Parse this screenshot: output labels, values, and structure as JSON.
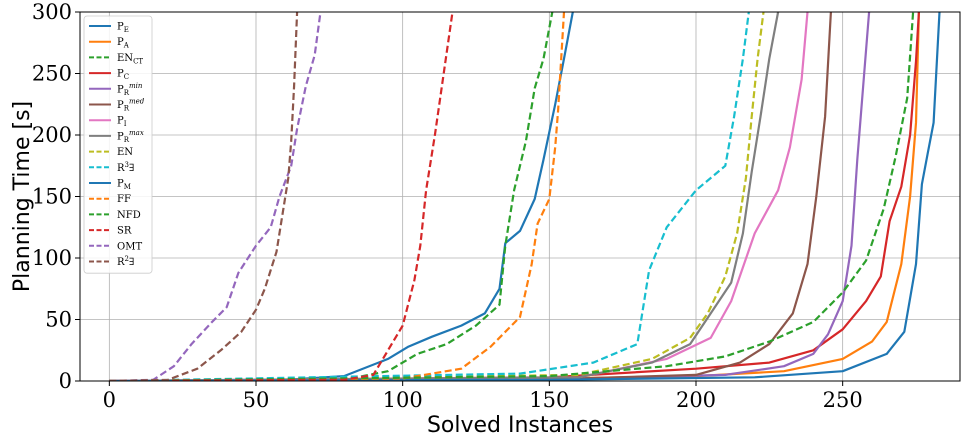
{
  "chart_data": {
    "type": "line",
    "xlabel": "Solved Instances",
    "ylabel": "Planning Time [s]",
    "xlim": [
      -10,
      290
    ],
    "ylim": [
      0,
      300
    ],
    "xticks": [
      0,
      50,
      100,
      150,
      200,
      250
    ],
    "yticks": [
      0,
      50,
      100,
      150,
      200,
      250,
      300
    ],
    "grid": true,
    "legend_position": "top-left",
    "series": [
      {
        "name": "P_E",
        "label_main": "P",
        "label_sub": "E",
        "label_sup": "",
        "color": "#1f77b4",
        "dash": "solid",
        "points": [
          [
            0,
            0
          ],
          [
            60,
            1
          ],
          [
            80,
            4
          ],
          [
            95,
            18
          ],
          [
            102,
            28
          ],
          [
            110,
            36
          ],
          [
            120,
            45
          ],
          [
            128,
            55
          ],
          [
            133,
            75
          ],
          [
            135,
            112
          ],
          [
            140,
            122
          ],
          [
            145,
            148
          ],
          [
            148,
            180
          ],
          [
            152,
            225
          ],
          [
            155,
            262
          ],
          [
            158,
            300
          ]
        ]
      },
      {
        "name": "P_A",
        "label_main": "P",
        "label_sub": "A",
        "label_sup": "",
        "color": "#ff7f0e",
        "dash": "solid",
        "points": [
          [
            0,
            0
          ],
          [
            150,
            2
          ],
          [
            200,
            4
          ],
          [
            230,
            8
          ],
          [
            250,
            18
          ],
          [
            260,
            32
          ],
          [
            265,
            48
          ],
          [
            270,
            95
          ],
          [
            273,
            150
          ],
          [
            275,
            210
          ],
          [
            276,
            300
          ]
        ]
      },
      {
        "name": "EN_CT",
        "label_main": "EN",
        "label_sub": "CT",
        "label_sup": "",
        "color": "#2ca02c",
        "dash": "dashed",
        "points": [
          [
            0,
            0
          ],
          [
            80,
            1
          ],
          [
            95,
            8
          ],
          [
            105,
            22
          ],
          [
            115,
            30
          ],
          [
            125,
            45
          ],
          [
            133,
            62
          ],
          [
            135,
            110
          ],
          [
            138,
            155
          ],
          [
            142,
            195
          ],
          [
            145,
            238
          ],
          [
            148,
            262
          ],
          [
            151,
            300
          ]
        ]
      },
      {
        "name": "P_C",
        "label_main": "P",
        "label_sub": "C",
        "label_sup": "",
        "color": "#d62728",
        "dash": "solid",
        "points": [
          [
            0,
            0
          ],
          [
            150,
            3
          ],
          [
            200,
            10
          ],
          [
            225,
            15
          ],
          [
            240,
            25
          ],
          [
            250,
            42
          ],
          [
            258,
            65
          ],
          [
            263,
            85
          ],
          [
            266,
            130
          ],
          [
            270,
            158
          ],
          [
            273,
            200
          ],
          [
            275,
            260
          ],
          [
            276,
            300
          ]
        ]
      },
      {
        "name": "P_R^min",
        "label_main": "P",
        "label_sub": "R",
        "label_sup": "min",
        "color": "#9467bd",
        "dash": "solid",
        "points": [
          [
            0,
            0
          ],
          [
            160,
            2
          ],
          [
            210,
            5
          ],
          [
            230,
            12
          ],
          [
            240,
            22
          ],
          [
            245,
            38
          ],
          [
            250,
            65
          ],
          [
            253,
            110
          ],
          [
            255,
            180
          ],
          [
            257,
            240
          ],
          [
            259,
            300
          ]
        ]
      },
      {
        "name": "P_R^med",
        "label_main": "P",
        "label_sub": "R",
        "label_sup": "med",
        "color": "#8c564b",
        "dash": "solid",
        "points": [
          [
            0,
            0
          ],
          [
            160,
            2
          ],
          [
            200,
            5
          ],
          [
            215,
            15
          ],
          [
            225,
            30
          ],
          [
            233,
            55
          ],
          [
            238,
            95
          ],
          [
            241,
            150
          ],
          [
            244,
            215
          ],
          [
            246,
            300
          ]
        ]
      },
      {
        "name": "P_I",
        "label_main": "P",
        "label_sub": "I",
        "label_sup": "",
        "color": "#e377c2",
        "dash": "solid",
        "points": [
          [
            0,
            0
          ],
          [
            160,
            3
          ],
          [
            190,
            18
          ],
          [
            205,
            35
          ],
          [
            212,
            65
          ],
          [
            220,
            120
          ],
          [
            228,
            155
          ],
          [
            232,
            190
          ],
          [
            236,
            245
          ],
          [
            238,
            300
          ]
        ]
      },
      {
        "name": "P_R^max",
        "label_main": "P",
        "label_sub": "R",
        "label_sup": "max",
        "color": "#7f7f7f",
        "dash": "solid",
        "points": [
          [
            0,
            0
          ],
          [
            160,
            3
          ],
          [
            185,
            15
          ],
          [
            198,
            30
          ],
          [
            205,
            55
          ],
          [
            212,
            80
          ],
          [
            216,
            120
          ],
          [
            219,
            170
          ],
          [
            222,
            215
          ],
          [
            225,
            262
          ],
          [
            228,
            300
          ]
        ]
      },
      {
        "name": "EN",
        "label_main": "EN",
        "label_sub": "",
        "label_sup": "",
        "color": "#bcbd22",
        "dash": "dashed",
        "points": [
          [
            0,
            0
          ],
          [
            160,
            5
          ],
          [
            185,
            18
          ],
          [
            198,
            35
          ],
          [
            204,
            55
          ],
          [
            210,
            85
          ],
          [
            214,
            120
          ],
          [
            217,
            165
          ],
          [
            219,
            215
          ],
          [
            221,
            262
          ],
          [
            223,
            300
          ]
        ]
      },
      {
        "name": "R^3∃",
        "label_main": "R",
        "label_sub": "",
        "label_sup": "3",
        "label_tail": "∃",
        "color": "#17becf",
        "dash": "dashed",
        "points": [
          [
            0,
            0
          ],
          [
            140,
            6
          ],
          [
            165,
            15
          ],
          [
            180,
            30
          ],
          [
            184,
            90
          ],
          [
            190,
            125
          ],
          [
            200,
            155
          ],
          [
            210,
            175
          ],
          [
            213,
            215
          ],
          [
            216,
            262
          ],
          [
            218,
            300
          ]
        ]
      },
      {
        "name": "P_M",
        "label_main": "P",
        "label_sub": "M",
        "label_sup": "",
        "color": "#1f77b4",
        "dash": "solid",
        "points": [
          [
            0,
            0
          ],
          [
            150,
            1
          ],
          [
            220,
            3
          ],
          [
            250,
            8
          ],
          [
            265,
            22
          ],
          [
            271,
            40
          ],
          [
            275,
            95
          ],
          [
            277,
            160
          ],
          [
            279,
            185
          ],
          [
            281,
            210
          ],
          [
            283,
            300
          ]
        ]
      },
      {
        "name": "FF",
        "label_main": "FF",
        "label_sub": "",
        "label_sup": "",
        "color": "#ff7f0e",
        "dash": "dashed",
        "points": [
          [
            0,
            0
          ],
          [
            100,
            2
          ],
          [
            120,
            10
          ],
          [
            130,
            28
          ],
          [
            140,
            52
          ],
          [
            144,
            95
          ],
          [
            146,
            128
          ],
          [
            150,
            148
          ],
          [
            152,
            190
          ],
          [
            153,
            220
          ],
          [
            155,
            300
          ]
        ]
      },
      {
        "name": "NFD",
        "label_main": "NFD",
        "label_sub": "",
        "label_sup": "",
        "color": "#2ca02c",
        "dash": "dashed",
        "points": [
          [
            0,
            0
          ],
          [
            150,
            4
          ],
          [
            190,
            12
          ],
          [
            210,
            20
          ],
          [
            225,
            32
          ],
          [
            240,
            48
          ],
          [
            250,
            72
          ],
          [
            258,
            98
          ],
          [
            264,
            140
          ],
          [
            268,
            182
          ],
          [
            272,
            230
          ],
          [
            274,
            300
          ]
        ]
      },
      {
        "name": "SR",
        "label_main": "SR",
        "label_sub": "",
        "label_sup": "",
        "color": "#d62728",
        "dash": "dashed",
        "points": [
          [
            0,
            0
          ],
          [
            80,
            1
          ],
          [
            90,
            5
          ],
          [
            95,
            25
          ],
          [
            100,
            45
          ],
          [
            104,
            82
          ],
          [
            106,
            110
          ],
          [
            108,
            155
          ],
          [
            111,
            200
          ],
          [
            114,
            250
          ],
          [
            117,
            300
          ]
        ]
      },
      {
        "name": "OMT",
        "label_main": "OMT",
        "label_sub": "",
        "label_sup": "",
        "color": "#9467bd",
        "dash": "dashed",
        "points": [
          [
            0,
            0
          ],
          [
            15,
            1
          ],
          [
            22,
            12
          ],
          [
            28,
            30
          ],
          [
            35,
            48
          ],
          [
            40,
            60
          ],
          [
            44,
            88
          ],
          [
            50,
            110
          ],
          [
            55,
            125
          ],
          [
            58,
            150
          ],
          [
            62,
            175
          ],
          [
            64,
            205
          ],
          [
            67,
            240
          ],
          [
            70,
            265
          ],
          [
            72,
            300
          ]
        ]
      },
      {
        "name": "R^2∃",
        "label_main": "R",
        "label_sub": "",
        "label_sup": "2",
        "label_tail": "∃",
        "color": "#8c564b",
        "dash": "dashed",
        "points": [
          [
            0,
            0
          ],
          [
            20,
            1
          ],
          [
            30,
            10
          ],
          [
            38,
            25
          ],
          [
            45,
            40
          ],
          [
            50,
            58
          ],
          [
            53,
            75
          ],
          [
            57,
            105
          ],
          [
            59,
            135
          ],
          [
            61,
            165
          ],
          [
            62,
            195
          ],
          [
            63,
            240
          ],
          [
            64,
            300
          ]
        ]
      }
    ]
  }
}
